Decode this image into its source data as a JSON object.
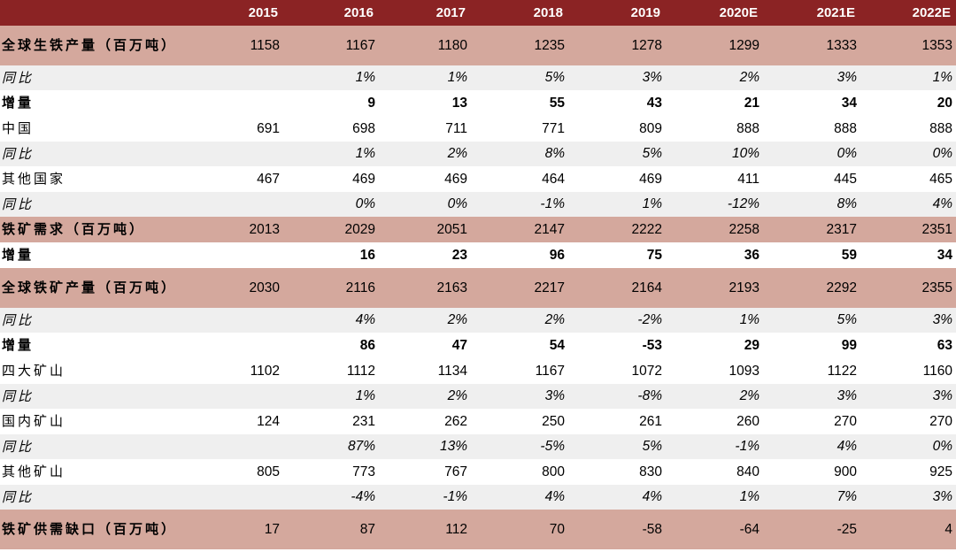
{
  "columns": [
    "",
    "2015",
    "2016",
    "2017",
    "2018",
    "2019",
    "2020E",
    "2021E",
    "2022E"
  ],
  "rows": [
    {
      "label": "全球生铁产量（百万吨）",
      "values": [
        "1158",
        "1167",
        "1180",
        "1235",
        "1278",
        "1299",
        "1333",
        "1353"
      ]
    },
    {
      "label": "同比",
      "values": [
        "",
        "1%",
        "1%",
        "5%",
        "3%",
        "2%",
        "3%",
        "1%"
      ]
    },
    {
      "label": "增量",
      "values": [
        "",
        "9",
        "13",
        "55",
        "43",
        "21",
        "34",
        "20"
      ]
    },
    {
      "label": "中国",
      "values": [
        "691",
        "698",
        "711",
        "771",
        "809",
        "888",
        "888",
        "888"
      ]
    },
    {
      "label": "同比",
      "values": [
        "",
        "1%",
        "2%",
        "8%",
        "5%",
        "10%",
        "0%",
        "0%"
      ]
    },
    {
      "label": "其他国家",
      "values": [
        "467",
        "469",
        "469",
        "464",
        "469",
        "411",
        "445",
        "465"
      ]
    },
    {
      "label": "同比",
      "values": [
        "",
        "0%",
        "0%",
        "-1%",
        "1%",
        "-12%",
        "8%",
        "4%"
      ]
    },
    {
      "label": "铁矿需求（百万吨）",
      "values": [
        "2013",
        "2029",
        "2051",
        "2147",
        "2222",
        "2258",
        "2317",
        "2351"
      ]
    },
    {
      "label": "增量",
      "values": [
        "",
        "16",
        "23",
        "96",
        "75",
        "36",
        "59",
        "34"
      ]
    },
    {
      "label": "全球铁矿产量（百万吨）",
      "values": [
        "2030",
        "2116",
        "2163",
        "2217",
        "2164",
        "2193",
        "2292",
        "2355"
      ]
    },
    {
      "label": "同比",
      "values": [
        "",
        "4%",
        "2%",
        "2%",
        "-2%",
        "1%",
        "5%",
        "3%"
      ]
    },
    {
      "label": "增量",
      "values": [
        "",
        "86",
        "47",
        "54",
        "-53",
        "29",
        "99",
        "63"
      ]
    },
    {
      "label": "四大矿山",
      "values": [
        "1102",
        "1112",
        "1134",
        "1167",
        "1072",
        "1093",
        "1122",
        "1160"
      ]
    },
    {
      "label": "同比",
      "values": [
        "",
        "1%",
        "2%",
        "3%",
        "-8%",
        "2%",
        "3%",
        "3%"
      ]
    },
    {
      "label": "国内矿山",
      "values": [
        "124",
        "231",
        "262",
        "250",
        "261",
        "260",
        "270",
        "270"
      ]
    },
    {
      "label": "同比",
      "values": [
        "",
        "87%",
        "13%",
        "-5%",
        "5%",
        "-1%",
        "4%",
        "0%"
      ]
    },
    {
      "label": "其他矿山",
      "values": [
        "805",
        "773",
        "767",
        "800",
        "830",
        "840",
        "900",
        "925"
      ]
    },
    {
      "label": "同比",
      "values": [
        "",
        "-4%",
        "-1%",
        "4%",
        "4%",
        "1%",
        "7%",
        "3%"
      ]
    },
    {
      "label": "铁矿供需缺口（百万吨）",
      "values": [
        "17",
        "87",
        "112",
        "70",
        "-58",
        "-64",
        "-25",
        "4"
      ]
    }
  ],
  "colors": {
    "header_bg": "#8b2324",
    "main_row_bg": "#d4a89d",
    "yoy_row_bg": "#efefef"
  }
}
